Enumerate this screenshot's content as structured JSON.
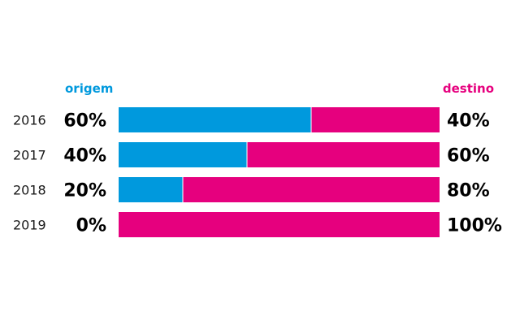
{
  "chart_data": {
    "type": "bar",
    "orientation": "horizontal",
    "stacked": true,
    "normalized_percent": true,
    "title": "",
    "xlabel": "",
    "ylabel": "",
    "categories": [
      "2016",
      "2017",
      "2018",
      "2019"
    ],
    "series": [
      {
        "name": "origem",
        "color": "#0099dd",
        "values": [
          60,
          40,
          20,
          0
        ],
        "labels": [
          "60%",
          "40%",
          "20%",
          "0%"
        ]
      },
      {
        "name": "destino",
        "color": "#e6007e",
        "values": [
          40,
          60,
          80,
          100
        ],
        "labels": [
          "40%",
          "60%",
          "80%",
          "100%"
        ]
      }
    ],
    "xlim": [
      0,
      100
    ],
    "grid": false,
    "legend_placement": "top, origem left, destino right"
  }
}
